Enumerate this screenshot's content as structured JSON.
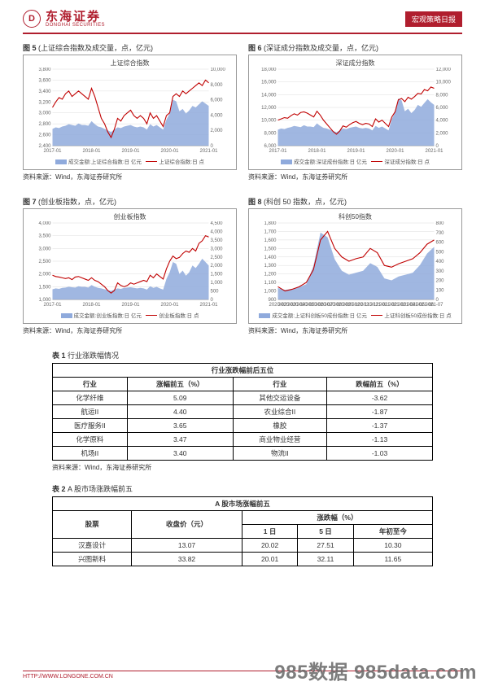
{
  "header": {
    "logo_cn": "东海证券",
    "logo_en": "DONGHAI SECURITIES",
    "badge": "宏观策略日报"
  },
  "charts": {
    "fig5": {
      "num": "图 5",
      "caption": "(上证综合指数及成交量，点，亿元)",
      "title": "上证综合指数",
      "y_left": [
        2400,
        2600,
        2800,
        3000,
        3200,
        3400,
        3600,
        3800
      ],
      "y_right": [
        0,
        2000,
        4000,
        6000,
        8000,
        10000
      ],
      "x_ticks": [
        "2017-01",
        "2018-01",
        "2019-01",
        "2020-01",
        "2021-01"
      ],
      "legend_area": "成交金额:上证综合指数:日 亿元",
      "legend_line": "上证综合指数:日 点",
      "line_color": "#c00000",
      "area_color": "#8faadc",
      "line": [
        3100,
        3200,
        3280,
        3250,
        3350,
        3400,
        3300,
        3350,
        3400,
        3350,
        3300,
        3250,
        3450,
        3300,
        3100,
        2900,
        2800,
        2650,
        2550,
        2700,
        2900,
        2850,
        2950,
        3000,
        3050,
        2950,
        2900,
        2950,
        2900,
        2800,
        3000,
        2900,
        2950,
        2850,
        2750,
        2950,
        3000,
        3300,
        3350,
        3300,
        3400,
        3350,
        3400,
        3450,
        3500,
        3550,
        3500,
        3600,
        3550
      ],
      "area": [
        2200,
        2400,
        2300,
        2500,
        2600,
        2800,
        2700,
        2600,
        2900,
        2700,
        2700,
        2600,
        3200,
        2800,
        2500,
        2400,
        2200,
        2000,
        1800,
        2100,
        2400,
        2300,
        2500,
        2600,
        2700,
        2500,
        2400,
        2500,
        2400,
        2100,
        2800,
        2500,
        2700,
        2400,
        2100,
        3400,
        4200,
        6000,
        5800,
        4500,
        4800,
        4200,
        4600,
        5200,
        5000,
        5400,
        5800,
        5500,
        5200
      ],
      "line_min": 2400,
      "line_max": 3800,
      "area_min": 0,
      "area_max": 10000
    },
    "fig6": {
      "num": "图 6",
      "caption": "(深证成分指数及成交量，点，亿元)",
      "title": "深证成分指数",
      "y_left": [
        6000,
        8000,
        10000,
        12000,
        14000,
        16000,
        18000
      ],
      "y_right": [
        0,
        2000,
        4000,
        6000,
        8000,
        10000,
        12000
      ],
      "x_ticks": [
        "2017-01",
        "2018-01",
        "2019-01",
        "2020-01",
        "2021-01"
      ],
      "legend_area": "成交金额:深证成份指数:日 亿元",
      "legend_line": "深证成分指数:日 点",
      "line_color": "#c00000",
      "area_color": "#8faadc",
      "line": [
        10000,
        10200,
        10400,
        10300,
        10700,
        11000,
        10800,
        11200,
        11300,
        11100,
        10800,
        10500,
        11400,
        10800,
        10000,
        9400,
        8800,
        8200,
        7800,
        8300,
        9100,
        8900,
        9300,
        9600,
        9800,
        9500,
        9300,
        9500,
        9400,
        9000,
        10200,
        9700,
        10000,
        9500,
        9000,
        10500,
        11300,
        13200,
        13400,
        12900,
        13600,
        13300,
        13700,
        14200,
        14100,
        14800,
        14600,
        15200,
        15000
      ],
      "area": [
        2500,
        2700,
        2600,
        2800,
        2900,
        3100,
        3000,
        2900,
        3200,
        3000,
        3000,
        2900,
        3500,
        3100,
        2800,
        2700,
        2500,
        2300,
        2100,
        2400,
        2700,
        2600,
        2800,
        2900,
        3000,
        2800,
        2700,
        2800,
        2700,
        2400,
        3100,
        2800,
        3000,
        2700,
        2400,
        4200,
        5200,
        7400,
        7100,
        5400,
        5800,
        5100,
        5600,
        6400,
        6100,
        6700,
        7300,
        6800,
        6400
      ],
      "line_min": 6000,
      "line_max": 18000,
      "area_min": 0,
      "area_max": 12000
    },
    "fig7": {
      "num": "图 7",
      "caption": "(创业板指数，点，亿元)",
      "title": "创业板指数",
      "y_left": [
        1000,
        1500,
        2000,
        2500,
        3000,
        3500,
        4000
      ],
      "y_right": [
        0,
        500,
        1000,
        1500,
        2000,
        2500,
        3000,
        3500,
        4000,
        4500
      ],
      "x_ticks": [
        "2017-01",
        "2018-01",
        "2019-01",
        "2020-01",
        "2021-01"
      ],
      "legend_area": "成交金额:创业板指数:日 亿元",
      "legend_line": "创业板指数:日 点",
      "line_color": "#c00000",
      "area_color": "#8faadc",
      "line": [
        1950,
        1900,
        1880,
        1850,
        1820,
        1850,
        1780,
        1880,
        1900,
        1850,
        1800,
        1750,
        1850,
        1750,
        1700,
        1600,
        1500,
        1350,
        1250,
        1350,
        1650,
        1550,
        1500,
        1550,
        1650,
        1600,
        1650,
        1700,
        1750,
        1700,
        1950,
        1850,
        2000,
        1900,
        1800,
        2200,
        2500,
        2700,
        2600,
        2650,
        2800,
        2900,
        2850,
        3000,
        2900,
        3200,
        3300,
        3500,
        3450
      ],
      "area": [
        600,
        650,
        620,
        680,
        700,
        750,
        720,
        700,
        780,
        740,
        740,
        700,
        850,
        750,
        680,
        650,
        600,
        550,
        500,
        580,
        650,
        620,
        680,
        700,
        720,
        680,
        650,
        680,
        650,
        580,
        780,
        680,
        740,
        650,
        580,
        1200,
        1600,
        2200,
        2100,
        1500,
        1700,
        1400,
        1600,
        2000,
        1850,
        2100,
        2400,
        2200,
        2000
      ],
      "line_min": 1000,
      "line_max": 4000,
      "area_min": 0,
      "area_max": 4500
    },
    "fig8": {
      "num": "图 8",
      "caption": "(科创 50 指数，点，亿元)",
      "title": "科创50指数",
      "y_left": [
        900,
        1000,
        1100,
        1200,
        1300,
        1400,
        1500,
        1600,
        1700,
        1800
      ],
      "y_right": [
        0,
        100,
        200,
        300,
        400,
        500,
        600,
        700,
        800
      ],
      "x_ticks": [
        "2020-02",
        "2020-03",
        "2020-04",
        "2020-05",
        "2020-06",
        "2020-07",
        "2020-08",
        "2020-09",
        "2020-10",
        "2020-11",
        "2020-12",
        "2021-01",
        "2021-02",
        "2021-03",
        "2021-04",
        "2021-05",
        "2021-06",
        "2021-07"
      ],
      "legend_area": "成交金额:上证科创板50成份指数:日 亿元",
      "legend_line": "上证科创板50成份指数:日 点",
      "line_color": "#c00000",
      "area_color": "#8faadc",
      "line": [
        1050,
        1000,
        1020,
        1050,
        1100,
        1250,
        1600,
        1700,
        1500,
        1400,
        1350,
        1380,
        1400,
        1500,
        1450,
        1300,
        1280,
        1320,
        1350,
        1380,
        1450,
        1550,
        1600
      ],
      "area": [
        120,
        100,
        110,
        130,
        160,
        350,
        700,
        650,
        420,
        300,
        260,
        280,
        300,
        380,
        340,
        220,
        200,
        240,
        260,
        280,
        360,
        480,
        550
      ],
      "line_min": 900,
      "line_max": 1800,
      "area_min": 0,
      "area_max": 800
    }
  },
  "source_text": "资料来源：Wind，东海证券研究所",
  "table1": {
    "label_num": "表 1",
    "label_txt": "行业涨跌幅情况",
    "header_main": "行业涨跌幅前后五位",
    "cols": [
      "行业",
      "涨幅前五（%）",
      "行业",
      "跌幅前五（%）"
    ],
    "rows": [
      [
        "化学纤维",
        "5.09",
        "其他交运设备",
        "-3.62"
      ],
      [
        "航运II",
        "4.40",
        "农业综合II",
        "-1.87"
      ],
      [
        "医疗服务II",
        "3.65",
        "橡胶",
        "-1.37"
      ],
      [
        "化学原料",
        "3.47",
        "商业物业经营",
        "-1.13"
      ],
      [
        "机场II",
        "3.40",
        "物流II",
        "-1.03"
      ]
    ]
  },
  "table2": {
    "label_num": "表 2",
    "label_txt": "A 股市场涨跌幅前五",
    "header_main": "A 股市场涨幅前五",
    "cols_top": [
      "股票",
      "收盘价（元）",
      "涨跌幅（%）"
    ],
    "cols_sub": [
      "1 日",
      "5 日",
      "年初至今"
    ],
    "rows": [
      [
        "汉嘉设计",
        "13.07",
        "20.02",
        "27.51",
        "10.30"
      ],
      [
        "兴图新科",
        "33.82",
        "20.01",
        "32.11",
        "11.65"
      ]
    ]
  },
  "footer": {
    "url": "HTTP://WWW.LONGONE.COM.CN"
  },
  "watermark": "985数据 985data.com",
  "colors": {
    "brand": "#b01e2e",
    "grid": "#dddddd",
    "axis": "#888888",
    "text": "#333333"
  }
}
